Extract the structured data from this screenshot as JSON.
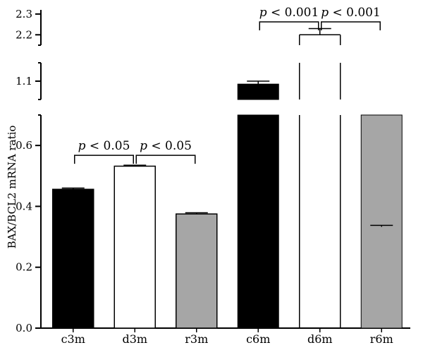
{
  "chart_data": {
    "type": "bar",
    "ylabel": "BAX/BCL2 mRNA ratio",
    "y_axis_segments": [
      {
        "range": [
          0.0,
          0.7
        ],
        "ticks": [
          "0.0",
          "0.2",
          "0.4",
          "0.6"
        ]
      },
      {
        "range": [
          1.05,
          1.15
        ],
        "ticks": [
          "1.1"
        ]
      },
      {
        "range": [
          2.15,
          2.32
        ],
        "ticks": [
          "2.2",
          "2.3"
        ]
      }
    ],
    "categories": [
      "c3m",
      "d3m",
      "r3m",
      "c6m",
      "d6m",
      "r6m"
    ],
    "values": [
      0.456,
      0.532,
      0.375,
      1.092,
      2.2,
      0.703
    ],
    "errors": [
      0.004,
      0.003,
      0.004,
      0.008,
      0.03,
      0.004
    ],
    "fill_colors": [
      "#000000",
      "#ffffff",
      "#a6a6a6",
      "#000000",
      "#ffffff",
      "#a6a6a6"
    ],
    "significance": [
      {
        "from": 0,
        "to": 1,
        "label_p": "p",
        "label_rest": " < 0.05"
      },
      {
        "from": 1,
        "to": 2,
        "label_p": "p",
        "label_rest": " < 0.05"
      },
      {
        "from": 3,
        "to": 4,
        "label_p": "p",
        "label_rest": " < 0.001"
      },
      {
        "from": 4,
        "to": 5,
        "label_p": "p",
        "label_rest": " < 0.001"
      }
    ]
  }
}
